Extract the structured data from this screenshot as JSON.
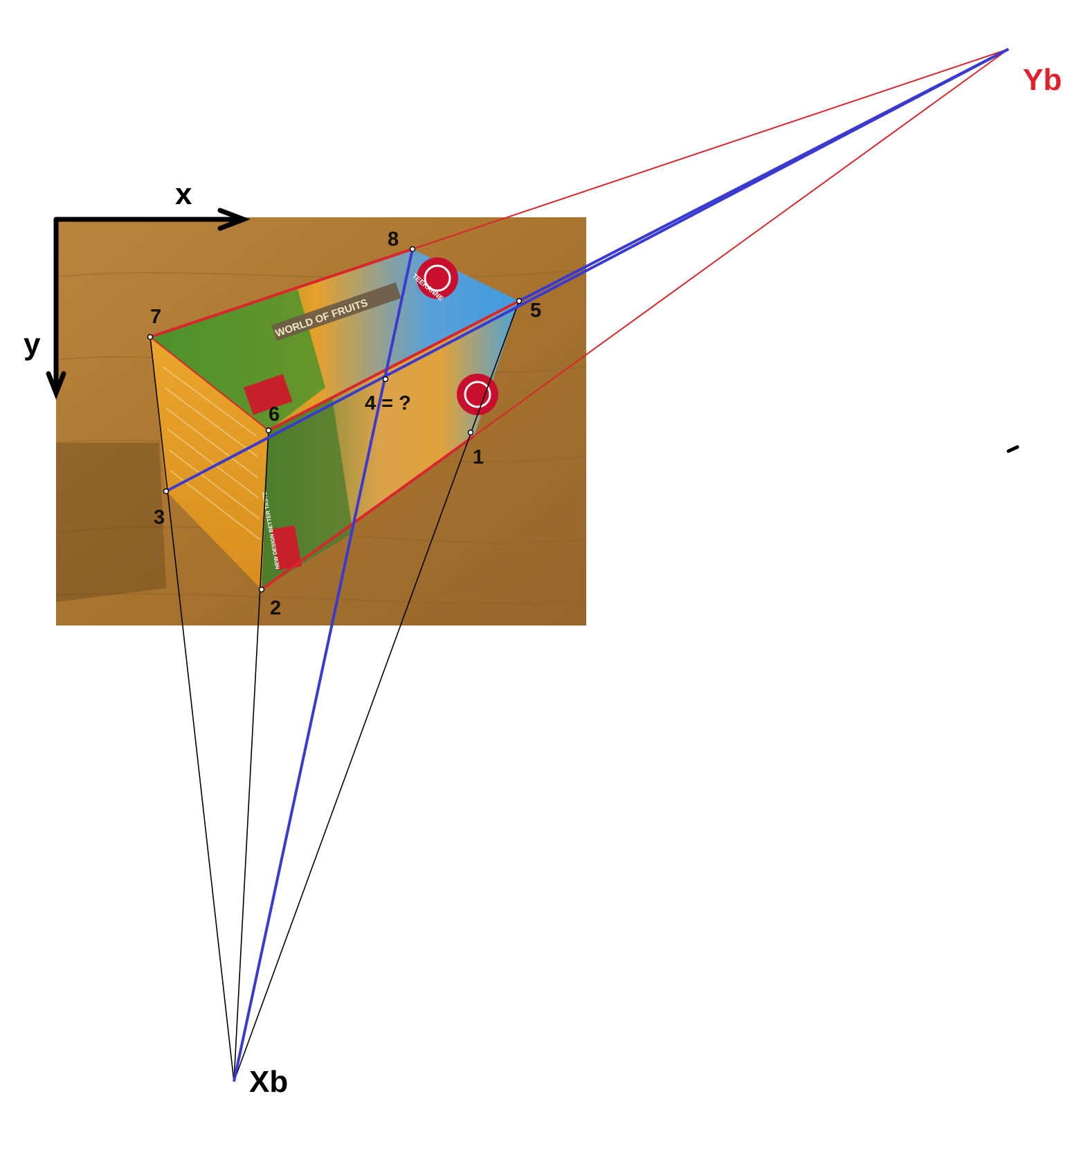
{
  "axes": {
    "x_label": "x",
    "y_label": "y"
  },
  "points": {
    "p1": "1",
    "p2": "2",
    "p3": "3",
    "p4": "4 = ?",
    "p5": "5",
    "p6": "6",
    "p7": "7",
    "p8": "8"
  },
  "vanishing_points": {
    "xb": "Xb",
    "yb": "Yb"
  },
  "photo": {
    "box_text_top": "WORLD OF FRUITS",
    "box_text_brand": "TEEKANNE",
    "box_text_badge": "NEW DESIGN BETTER TASTE"
  },
  "colors": {
    "red_lines": "#d9262c",
    "blue_lines": "#3a3ad0",
    "black_lines": "#000000",
    "yb_label": "#e0202a",
    "table": "#b07a36",
    "box_orange": "#e8a22a",
    "grass": "#4a8a2a",
    "sky": "#4fa8e0"
  }
}
